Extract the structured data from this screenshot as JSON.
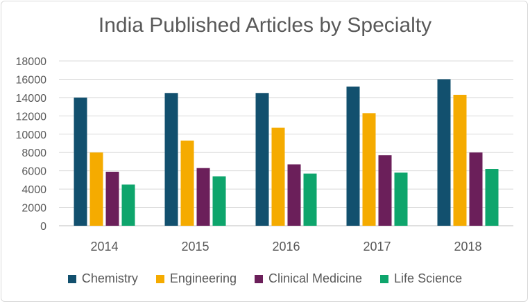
{
  "chart_data": {
    "type": "bar",
    "title": "India Published Articles by Specialty",
    "xlabel": "",
    "ylabel": "",
    "ylim": [
      0,
      18000
    ],
    "yticks": [
      0,
      2000,
      4000,
      6000,
      8000,
      10000,
      12000,
      14000,
      16000,
      18000
    ],
    "categories": [
      "2014",
      "2015",
      "2016",
      "2017",
      "2018"
    ],
    "series": [
      {
        "name": "Chemistry",
        "color": "#12506e",
        "values": [
          14000,
          14500,
          14500,
          15200,
          16000
        ]
      },
      {
        "name": "Engineering",
        "color": "#f5ab00",
        "values": [
          8000,
          9300,
          10700,
          12300,
          14300
        ]
      },
      {
        "name": "Clinical Medicine",
        "color": "#6b1f5a",
        "values": [
          5900,
          6300,
          6700,
          7700,
          8000
        ]
      },
      {
        "name": "Life Science",
        "color": "#0ea56c",
        "values": [
          4500,
          5400,
          5700,
          5800,
          6200
        ]
      }
    ],
    "grid": true,
    "legend_position": "bottom"
  }
}
